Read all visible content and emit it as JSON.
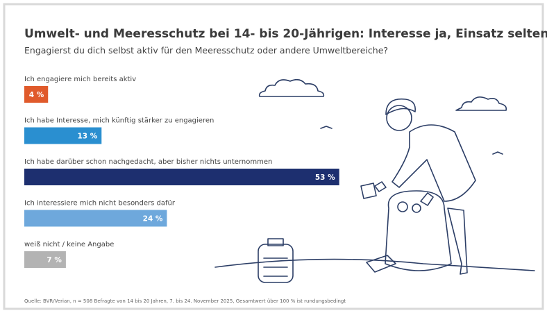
{
  "chart_data": {
    "type": "bar",
    "title": "Umwelt- und Meeresschutz bei 14- bis 20-Jährigen: Interesse ja, Einsatz selten",
    "subtitle": "Engagierst du dich selbst aktiv für den Meeresschutz oder andere Umweltbereiche?",
    "categories": [
      "Ich engagiere mich bereits aktiv",
      "Ich habe Interesse, mich künftig stärker zu engagieren",
      "Ich habe darüber schon nachgedacht, aber bisher nichts unternommen",
      "Ich interessiere mich nicht besonders dafür",
      "weiß nicht / keine Angabe"
    ],
    "values": [
      4,
      13,
      53,
      24,
      7
    ],
    "value_labels": [
      "4 %",
      "13 %",
      "53 %",
      "24 %",
      "7 %"
    ],
    "colors": [
      "#e05a2b",
      "#2a8fd0",
      "#1d2f6f",
      "#6ea8dc",
      "#b3b3b3"
    ],
    "source": "Quelle: BVR/Verian, n = 508 Befragte von 14 bis 20 Jahren, 7. bis 24. November 2025, Gesamtwert über 100 % ist rundungsbedingt"
  }
}
